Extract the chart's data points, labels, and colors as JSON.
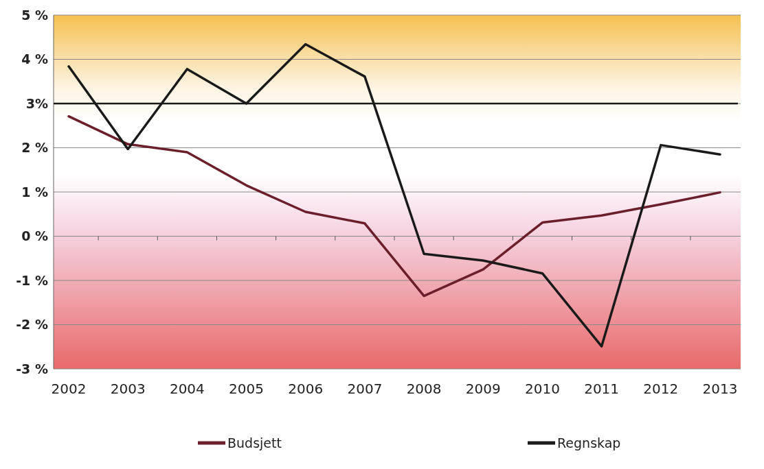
{
  "chart_data": {
    "type": "line",
    "categories": [
      "2002",
      "2003",
      "2004",
      "2005",
      "2006",
      "2007",
      "2008",
      "2009",
      "2010",
      "2011",
      "2012",
      "2013"
    ],
    "series": [
      {
        "name": "Budsjett",
        "color": "#6b1f2a",
        "values": [
          2.71,
          2.08,
          1.9,
          1.15,
          0.55,
          0.29,
          -1.35,
          -0.75,
          0.31,
          0.47,
          0.72,
          0.99
        ]
      },
      {
        "name": "Regnskap",
        "color": "#1a1a1a",
        "values": [
          3.84,
          1.97,
          3.78,
          3.0,
          4.34,
          3.61,
          -0.4,
          -0.55,
          -0.84,
          -2.49,
          2.06,
          1.85
        ]
      }
    ],
    "ylim": [
      -3,
      5
    ],
    "yticks": [
      {
        "value": -3,
        "label": "-3 %"
      },
      {
        "value": -2,
        "label": "-2 %"
      },
      {
        "value": -1,
        "label": "-1 %"
      },
      {
        "value": 0,
        "label": "0 %"
      },
      {
        "value": 1,
        "label": "1 %"
      },
      {
        "value": 2,
        "label": "2 %"
      },
      {
        "value": 3,
        "label": "3%"
      },
      {
        "value": 4,
        "label": "4 %"
      },
      {
        "value": 5,
        "label": "5 %"
      }
    ],
    "ref_lines": [
      {
        "axis": "y",
        "value": 3,
        "color": "#1a1a1a"
      }
    ],
    "grid": "y",
    "legend": "bottom",
    "marker": "none",
    "line_style": "solid"
  }
}
